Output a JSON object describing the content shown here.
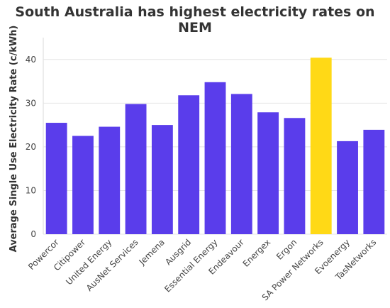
{
  "chart_data": {
    "type": "bar",
    "title": "South Australia has highest electricity rates on NEM",
    "xlabel": "",
    "ylabel": "Average Single Use Electricity Rate (c/kWh)",
    "ylim": [
      0,
      45
    ],
    "yticks": [
      0,
      10,
      20,
      30,
      40
    ],
    "grid": true,
    "categories": [
      "Powercor",
      "Citipower",
      "United Energy",
      "AusNet Services",
      "Jemena",
      "Ausgrid",
      "Essential Energy",
      "Endeavour",
      "Energex",
      "Ergon",
      "SA Power Networks",
      "Evoenergy",
      "TasNetworks"
    ],
    "values": [
      25.5,
      22.5,
      24.6,
      29.8,
      25.0,
      31.8,
      34.8,
      32.1,
      27.9,
      26.6,
      40.4,
      21.3,
      23.9
    ],
    "colors": [
      "#5a3deb",
      "#5a3deb",
      "#5a3deb",
      "#5a3deb",
      "#5a3deb",
      "#5a3deb",
      "#5a3deb",
      "#5a3deb",
      "#5a3deb",
      "#5a3deb",
      "#ffd916",
      "#5a3deb",
      "#5a3deb"
    ]
  }
}
